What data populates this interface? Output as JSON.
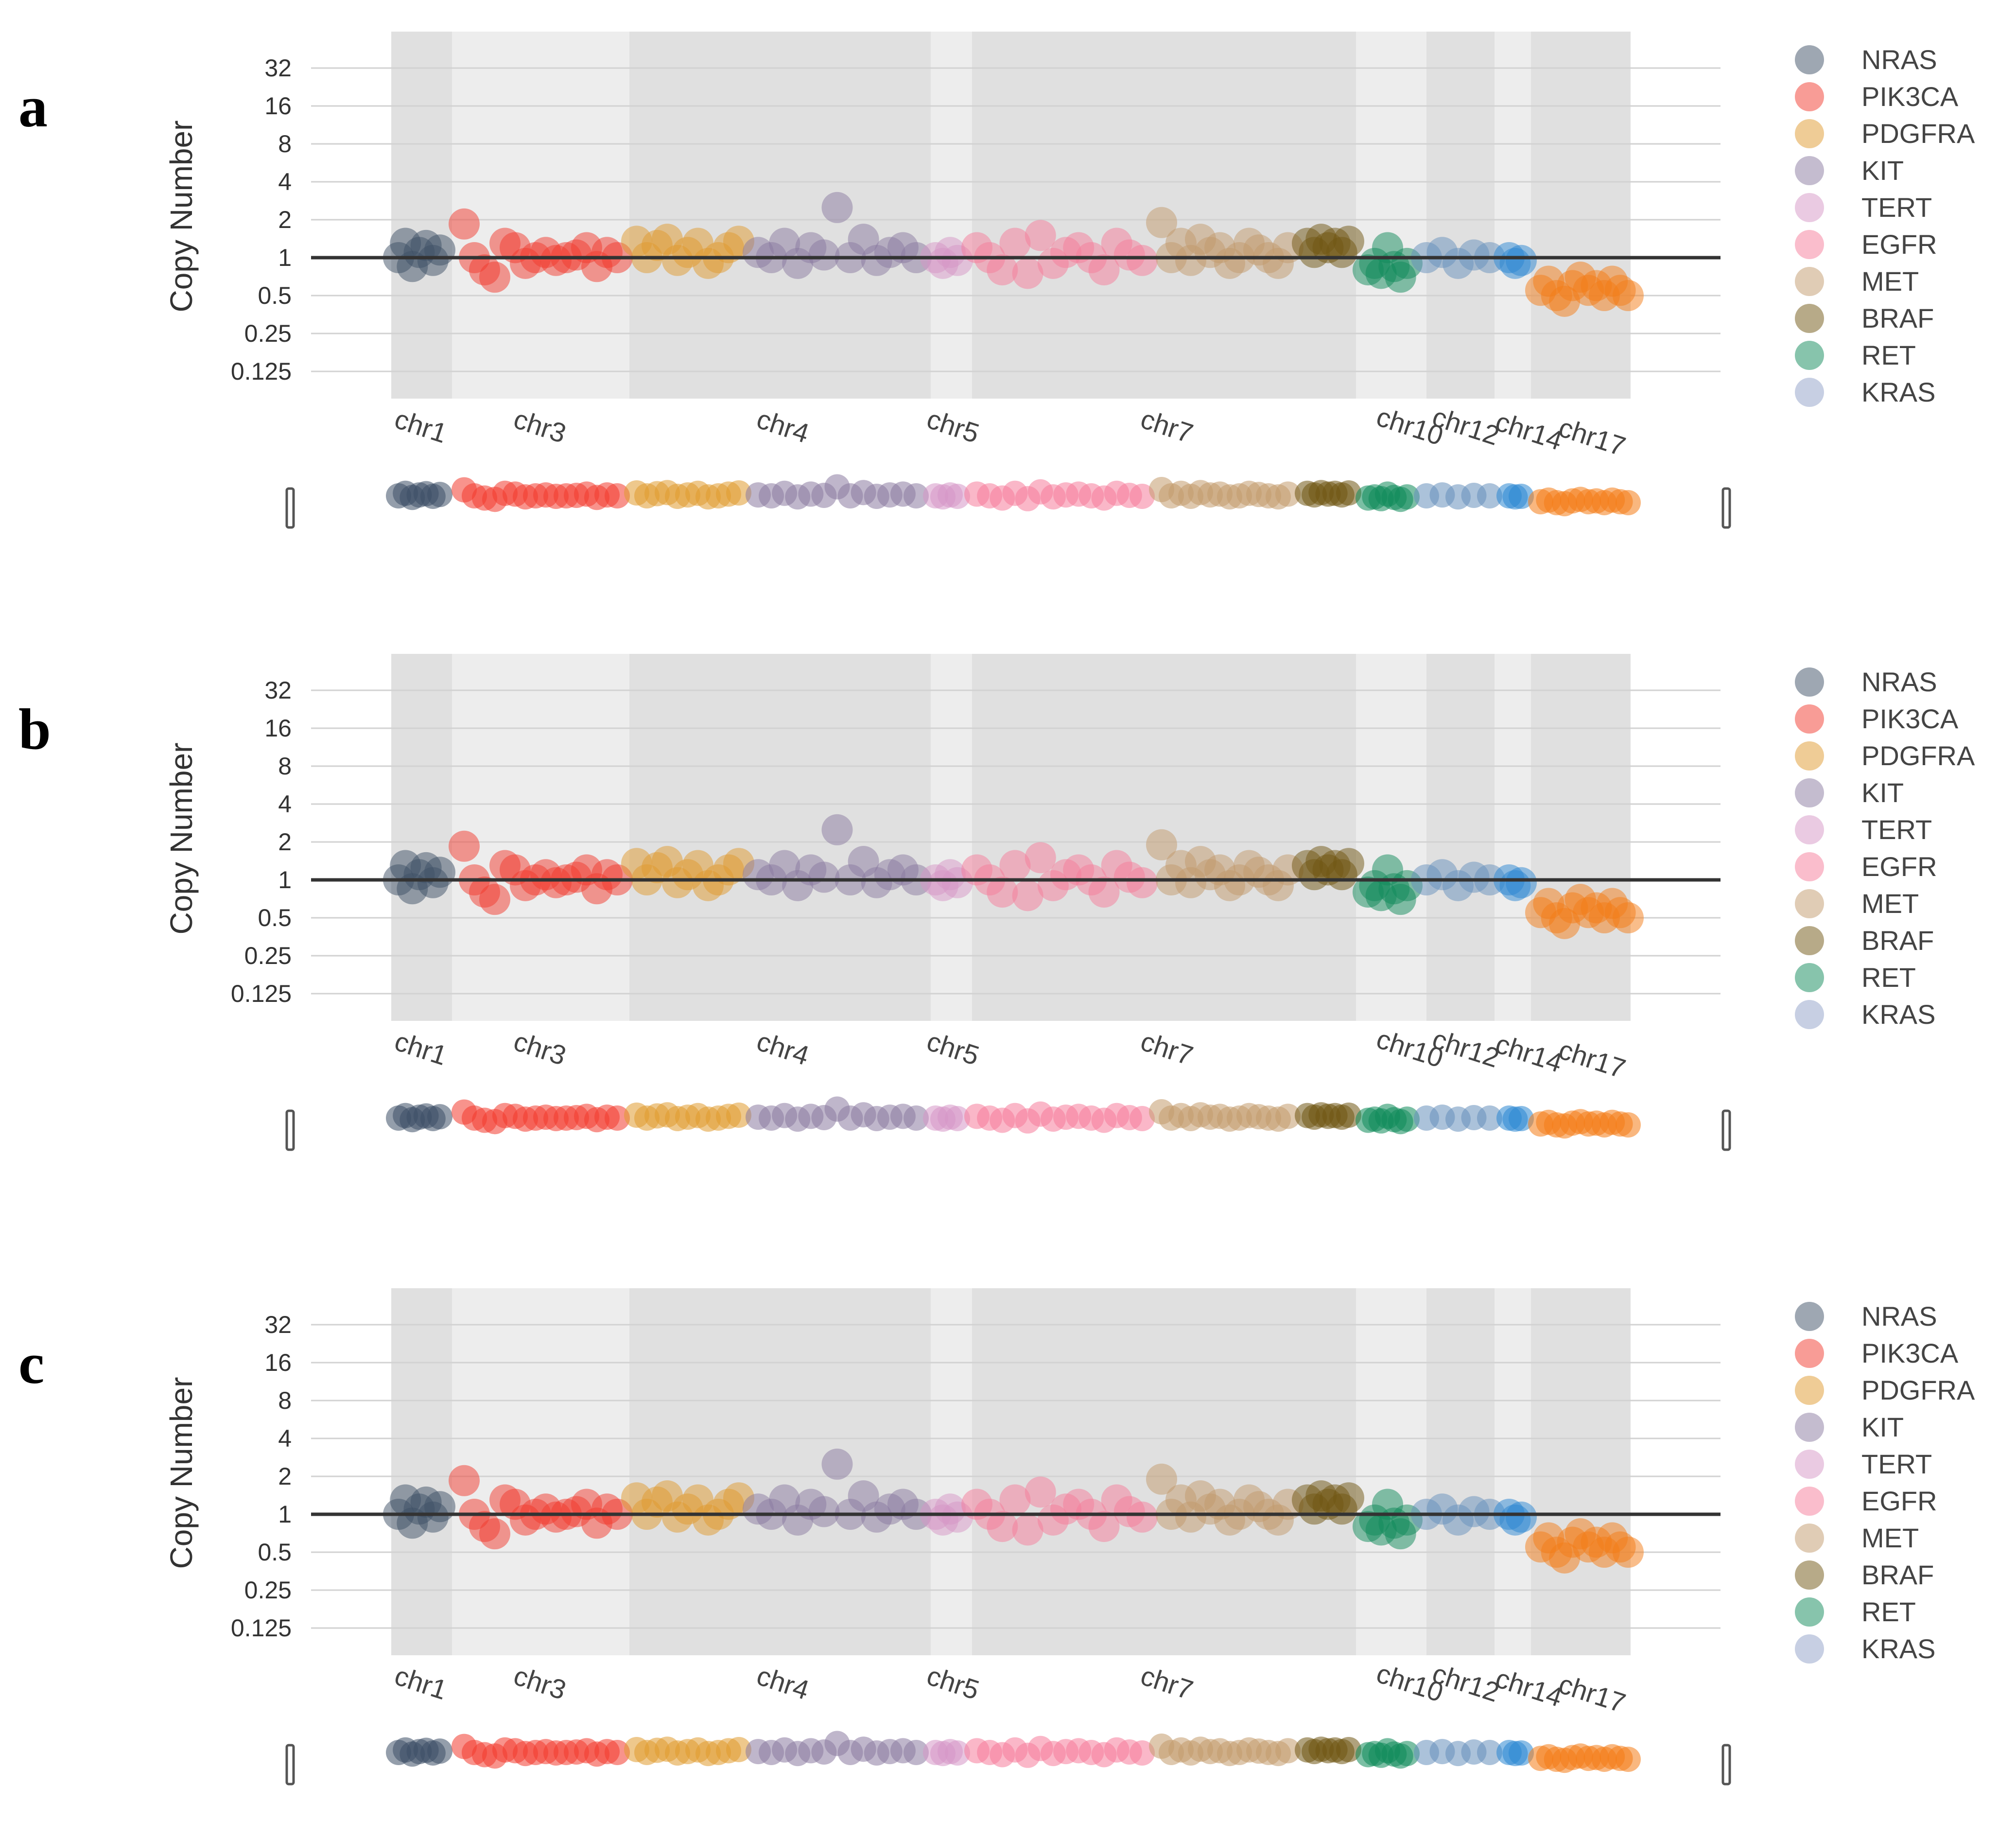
{
  "figure": {
    "panels": [
      "a",
      "b",
      "c"
    ],
    "ylabel": "Copy Number"
  },
  "colors": {
    "NRAS": "#3d4f66",
    "PIK3CA": "#f23a2e",
    "PDGFRA": "#e09a2e",
    "KIT": "#8a7aa0",
    "TERT": "#d596c6",
    "EGFR": "#f67c9a",
    "MET": "#c29a6c",
    "BRAF": "#6f5612",
    "RET": "#0f8a5a",
    "KRAS": "#8f9fc8",
    "KRAS_mini": "#6690bb",
    "CHR14": "#2a86d1",
    "CHR17": "#f47b16",
    "band_dark": "#e0e0e0",
    "band_light": "#ededed",
    "refline": "#333333"
  },
  "chart_data": [
    {
      "panel": "a",
      "type": "scatter",
      "ylabel": "Copy Number",
      "yscale": "log2",
      "ylim": [
        0.08,
        64
      ],
      "yticks": [
        "32",
        "16",
        "8",
        "4",
        "2",
        "1",
        "0.5",
        "0.25",
        "0.125"
      ],
      "reference_line": 1,
      "xticks": [
        "chr1",
        "chr3",
        "chr4",
        "chr5",
        "chr7",
        "chr10",
        "chr12",
        "chr14",
        "chr17"
      ],
      "legend": [
        "NRAS",
        "PIK3CA",
        "PDGFRA",
        "KIT",
        "TERT",
        "EGFR",
        "MET",
        "BRAF",
        "RET",
        "KRAS"
      ],
      "series": [
        {
          "name": "NRAS",
          "values": [
            1.0,
            1.3,
            0.85,
            1.1,
            1.25,
            0.95,
            1.15
          ]
        },
        {
          "name": "PIK3CA",
          "values": [
            1.85,
            1.0,
            0.8,
            0.7,
            1.3,
            1.2,
            0.9,
            1.0,
            1.1,
            0.95,
            1.0,
            1.05,
            1.2,
            0.85,
            1.1,
            1.0
          ]
        },
        {
          "name": "PDGFRA",
          "values": [
            1.35,
            1.0,
            1.25,
            1.4,
            0.95,
            1.1,
            1.3,
            0.9,
            1.0,
            1.2,
            1.35
          ]
        },
        {
          "name": "KIT",
          "values": [
            1.1,
            1.0,
            1.3,
            0.9,
            1.2,
            1.05,
            2.5,
            1.0,
            1.4,
            0.95,
            1.1,
            1.2,
            1.0
          ]
        },
        {
          "name": "TERT",
          "values": [
            1.0,
            0.9,
            1.1,
            0.95
          ]
        },
        {
          "name": "EGFR",
          "values": [
            1.2,
            1.0,
            0.8,
            1.3,
            0.75,
            1.5,
            0.9,
            1.1,
            1.2,
            1.0,
            0.8,
            1.3,
            1.05,
            0.95
          ]
        },
        {
          "name": "MET",
          "values": [
            1.9,
            1.0,
            1.3,
            0.95,
            1.4,
            1.1,
            1.2,
            0.9,
            1.0,
            1.3,
            1.15,
            1.0,
            0.9,
            1.2
          ]
        },
        {
          "name": "BRAF",
          "values": [
            1.3,
            1.1,
            1.4,
            1.2,
            1.3,
            1.1,
            1.35
          ]
        },
        {
          "name": "RET",
          "values": [
            0.8,
            0.9,
            0.75,
            1.2,
            0.85,
            0.7,
            0.9
          ]
        },
        {
          "name": "KRAS",
          "values": [
            1.0,
            1.1,
            0.9,
            1.05,
            1.0
          ]
        },
        {
          "name": "chr14",
          "values": [
            1.0,
            0.9,
            0.95
          ]
        },
        {
          "name": "chr17",
          "values": [
            0.55,
            0.65,
            0.5,
            0.45,
            0.6,
            0.7,
            0.55,
            0.6,
            0.5,
            0.65,
            0.55,
            0.5
          ]
        }
      ]
    },
    {
      "panel": "b",
      "type": "scatter",
      "ylabel": "Copy Number",
      "yscale": "log2",
      "ylim": [
        0.08,
        64
      ],
      "yticks": [
        "32",
        "16",
        "8",
        "4",
        "2",
        "1",
        "0.5",
        "0.25",
        "0.125"
      ],
      "reference_line": 1,
      "xticks": [
        "chr1",
        "chr3",
        "chr4",
        "chr5",
        "chr7",
        "chr10",
        "chr12",
        "chr14",
        "chr17"
      ],
      "legend": [
        "NRAS",
        "PIK3CA",
        "PDGFRA",
        "KIT",
        "TERT",
        "EGFR",
        "MET",
        "BRAF",
        "RET",
        "KRAS"
      ],
      "series": [
        {
          "name": "NRAS",
          "values": [
            1.0,
            1.3,
            0.85,
            1.1,
            1.25,
            0.95,
            1.15
          ]
        },
        {
          "name": "PIK3CA",
          "values": [
            1.85,
            1.0,
            0.8,
            0.7,
            1.3,
            1.2,
            0.9,
            1.0,
            1.1,
            0.95,
            1.0,
            1.05,
            1.2,
            0.85,
            1.1,
            1.0
          ]
        },
        {
          "name": "PDGFRA",
          "values": [
            1.35,
            1.0,
            1.25,
            1.4,
            0.95,
            1.1,
            1.3,
            0.9,
            1.0,
            1.2,
            1.35
          ]
        },
        {
          "name": "KIT",
          "values": [
            1.1,
            1.0,
            1.3,
            0.9,
            1.2,
            1.05,
            2.5,
            1.0,
            1.4,
            0.95,
            1.1,
            1.2,
            1.0
          ]
        },
        {
          "name": "TERT",
          "values": [
            1.0,
            0.9,
            1.1,
            0.95
          ]
        },
        {
          "name": "EGFR",
          "values": [
            1.2,
            1.0,
            0.8,
            1.3,
            0.75,
            1.5,
            0.9,
            1.1,
            1.2,
            1.0,
            0.8,
            1.3,
            1.05,
            0.95
          ]
        },
        {
          "name": "MET",
          "values": [
            1.9,
            1.0,
            1.3,
            0.95,
            1.4,
            1.1,
            1.2,
            0.9,
            1.0,
            1.3,
            1.15,
            1.0,
            0.9,
            1.2
          ]
        },
        {
          "name": "BRAF",
          "values": [
            1.3,
            1.1,
            1.4,
            1.2,
            1.3,
            1.1,
            1.35
          ]
        },
        {
          "name": "RET",
          "values": [
            0.8,
            0.9,
            0.75,
            1.2,
            0.85,
            0.7,
            0.9
          ]
        },
        {
          "name": "KRAS",
          "values": [
            1.0,
            1.1,
            0.9,
            1.05,
            1.0
          ]
        },
        {
          "name": "chr14",
          "values": [
            1.0,
            0.9,
            0.95
          ]
        },
        {
          "name": "chr17",
          "values": [
            0.55,
            0.65,
            0.5,
            0.45,
            0.6,
            0.7,
            0.55,
            0.6,
            0.5,
            0.65,
            0.55,
            0.5
          ]
        }
      ]
    },
    {
      "panel": "c",
      "type": "scatter",
      "ylabel": "Copy Number",
      "yscale": "log2",
      "ylim": [
        0.08,
        64
      ],
      "yticks": [
        "32",
        "16",
        "8",
        "4",
        "2",
        "1",
        "0.5",
        "0.25",
        "0.125"
      ],
      "reference_line": 1,
      "xticks": [
        "chr1",
        "chr3",
        "chr4",
        "chr5",
        "chr7",
        "chr10",
        "chr12",
        "chr14",
        "chr17"
      ],
      "legend": [
        "NRAS",
        "PIK3CA",
        "PDGFRA",
        "KIT",
        "TERT",
        "EGFR",
        "MET",
        "BRAF",
        "RET",
        "KRAS"
      ],
      "series": [
        {
          "name": "NRAS",
          "values": [
            1.0,
            1.3,
            0.85,
            1.1,
            1.25,
            0.95,
            1.15
          ]
        },
        {
          "name": "PIK3CA",
          "values": [
            1.85,
            1.0,
            0.8,
            0.7,
            1.3,
            1.2,
            0.9,
            1.0,
            1.1,
            0.95,
            1.0,
            1.05,
            1.2,
            0.85,
            1.1,
            1.0
          ]
        },
        {
          "name": "PDGFRA",
          "values": [
            1.35,
            1.0,
            1.25,
            1.4,
            0.95,
            1.1,
            1.3,
            0.9,
            1.0,
            1.2,
            1.35
          ]
        },
        {
          "name": "KIT",
          "values": [
            1.1,
            1.0,
            1.3,
            0.9,
            1.2,
            1.05,
            2.5,
            1.0,
            1.4,
            0.95,
            1.1,
            1.2,
            1.0
          ]
        },
        {
          "name": "TERT",
          "values": [
            1.0,
            0.9,
            1.1,
            0.95
          ]
        },
        {
          "name": "EGFR",
          "values": [
            1.2,
            1.0,
            0.8,
            1.3,
            0.75,
            1.5,
            0.9,
            1.1,
            1.2,
            1.0,
            0.8,
            1.3,
            1.05,
            0.95
          ]
        },
        {
          "name": "MET",
          "values": [
            1.9,
            1.0,
            1.3,
            0.95,
            1.4,
            1.1,
            1.2,
            0.9,
            1.0,
            1.3,
            1.15,
            1.0,
            0.9,
            1.2
          ]
        },
        {
          "name": "BRAF",
          "values": [
            1.3,
            1.1,
            1.4,
            1.2,
            1.3,
            1.1,
            1.35
          ]
        },
        {
          "name": "RET",
          "values": [
            0.8,
            0.9,
            0.75,
            1.2,
            0.85,
            0.7,
            0.9
          ]
        },
        {
          "name": "KRAS",
          "values": [
            1.0,
            1.1,
            0.9,
            1.05,
            1.0
          ]
        },
        {
          "name": "chr14",
          "values": [
            1.0,
            0.9,
            0.95
          ]
        },
        {
          "name": "chr17",
          "values": [
            0.55,
            0.65,
            0.5,
            0.45,
            0.6,
            0.7,
            0.55,
            0.6,
            0.5,
            0.65,
            0.55,
            0.5
          ]
        }
      ]
    }
  ]
}
